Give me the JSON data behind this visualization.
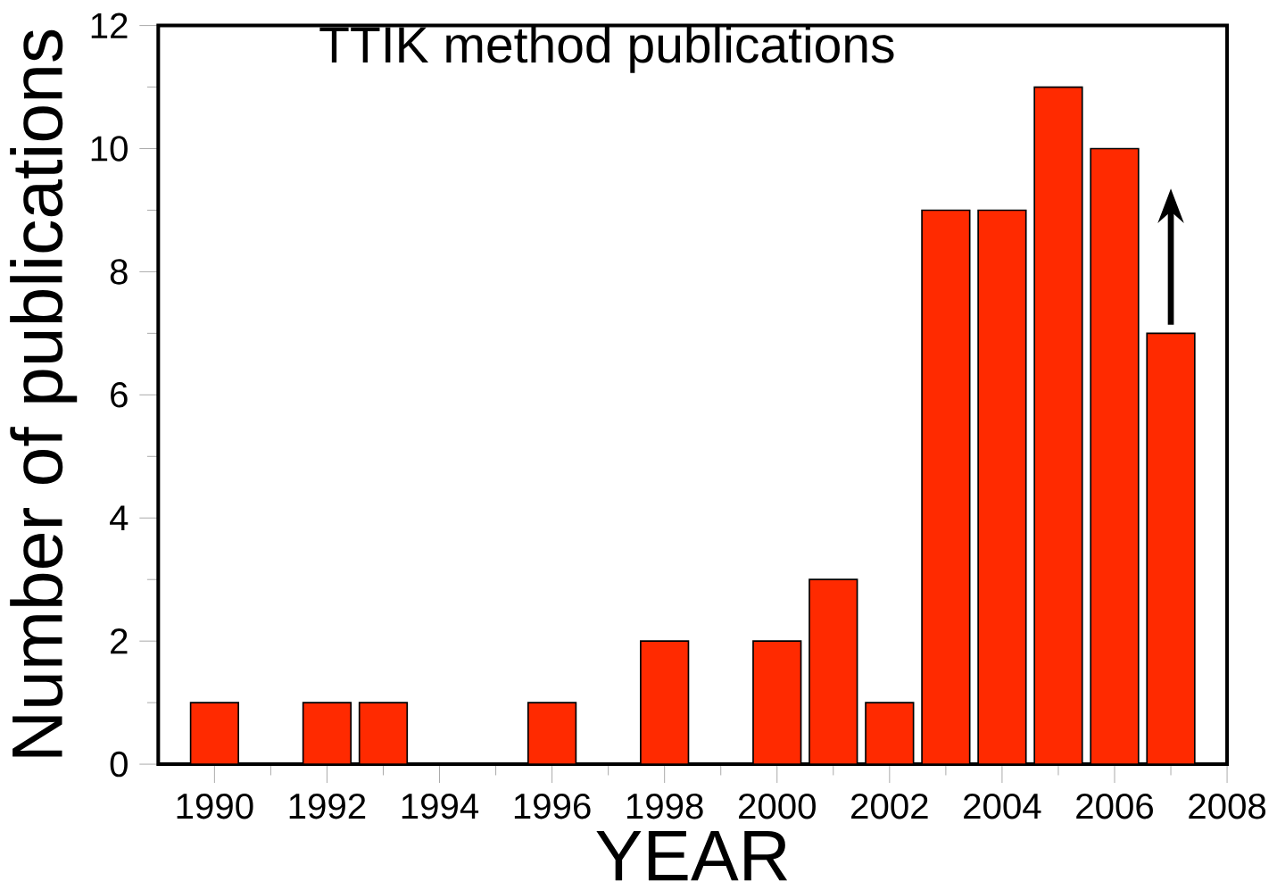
{
  "chart_data": {
    "type": "bar",
    "title": "TTIK method publications",
    "xlabel": "YEAR",
    "ylabel": "Number of publications",
    "x": [
      1990,
      1992,
      1993,
      1996,
      1998,
      2000,
      2001,
      2002,
      2003,
      2004,
      2005,
      2006,
      2007
    ],
    "values": [
      1,
      1,
      1,
      1,
      2,
      2,
      3,
      1,
      9,
      9,
      11,
      10,
      7
    ],
    "color": "#ff2a00",
    "xlim": [
      1989,
      2008
    ],
    "xticks": [
      1990,
      1992,
      1994,
      1996,
      1998,
      2000,
      2002,
      2004,
      2006,
      2008
    ],
    "ylim": [
      0,
      12
    ],
    "yticks": [
      0,
      2,
      4,
      6,
      8,
      10,
      12
    ]
  }
}
